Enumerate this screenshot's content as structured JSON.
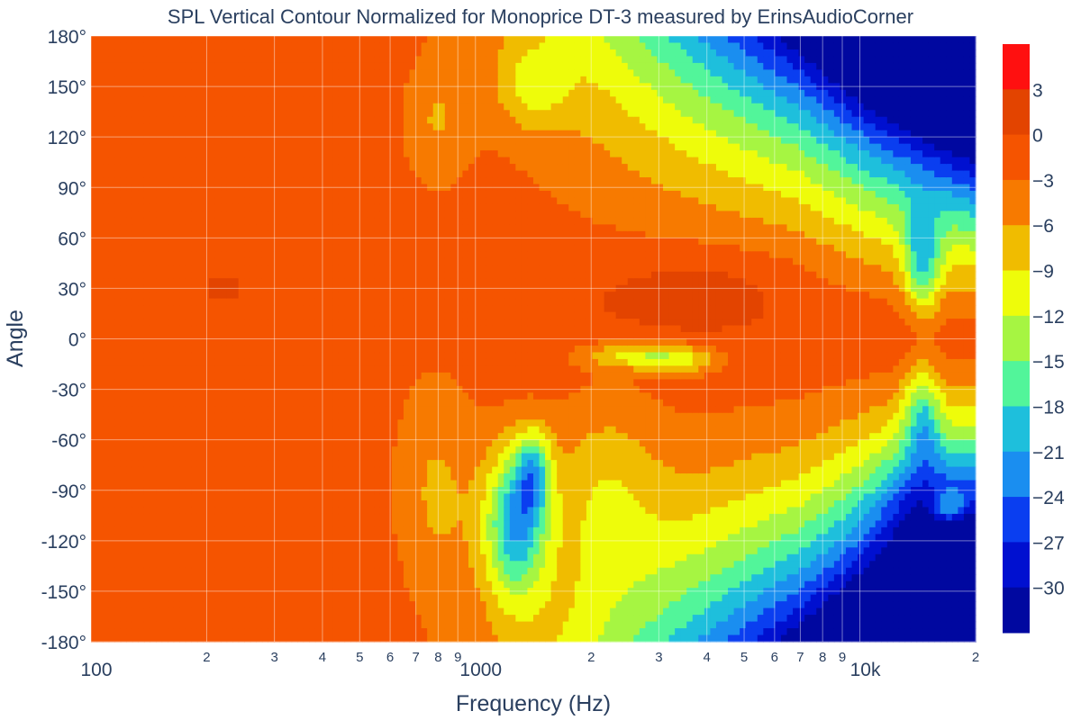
{
  "chart_data": {
    "type": "heatmap",
    "title": "SPL Vertical Contour Normalized for Monoprice DT-3 measured by ErinsAudioCorner",
    "xlabel": "Frequency (Hz)",
    "ylabel": "Angle",
    "x_scale": "log",
    "xlim": [
      100,
      20000
    ],
    "ylim": [
      -180,
      180
    ],
    "x_ticks_major": [
      {
        "value": 100,
        "label": "100"
      },
      {
        "value": 1000,
        "label": "1000"
      },
      {
        "value": 10000,
        "label": "10k"
      }
    ],
    "x_ticks_minor": [
      {
        "value": 200,
        "label": "2"
      },
      {
        "value": 300,
        "label": "3"
      },
      {
        "value": 400,
        "label": "4"
      },
      {
        "value": 500,
        "label": "5"
      },
      {
        "value": 600,
        "label": "6"
      },
      {
        "value": 700,
        "label": "7"
      },
      {
        "value": 800,
        "label": "8"
      },
      {
        "value": 900,
        "label": "9"
      },
      {
        "value": 2000,
        "label": "2"
      },
      {
        "value": 3000,
        "label": "3"
      },
      {
        "value": 4000,
        "label": "4"
      },
      {
        "value": 5000,
        "label": "5"
      },
      {
        "value": 6000,
        "label": "6"
      },
      {
        "value": 7000,
        "label": "7"
      },
      {
        "value": 8000,
        "label": "8"
      },
      {
        "value": 9000,
        "label": "9"
      },
      {
        "value": 20000,
        "label": "2"
      }
    ],
    "y_ticks": [
      {
        "value": 180,
        "label": "180°"
      },
      {
        "value": 150,
        "label": "150°"
      },
      {
        "value": 120,
        "label": "120°"
      },
      {
        "value": 90,
        "label": "90°"
      },
      {
        "value": 60,
        "label": "60°"
      },
      {
        "value": 30,
        "label": "30°"
      },
      {
        "value": 0,
        "label": "0°"
      },
      {
        "value": -30,
        "label": "-30°"
      },
      {
        "value": -60,
        "label": "-60°"
      },
      {
        "value": -90,
        "label": "-90°"
      },
      {
        "value": -120,
        "label": "-120°"
      },
      {
        "value": -150,
        "label": "-150°"
      },
      {
        "value": -180,
        "label": "-180°"
      }
    ],
    "colorbar": {
      "range": [
        -33,
        6
      ],
      "ticks": [
        {
          "value": 3,
          "label": "3"
        },
        {
          "value": 0,
          "label": "0"
        },
        {
          "value": -3,
          "label": "−3"
        },
        {
          "value": -6,
          "label": "−6"
        },
        {
          "value": -9,
          "label": "−9"
        },
        {
          "value": -12,
          "label": "−12"
        },
        {
          "value": -15,
          "label": "−15"
        },
        {
          "value": -18,
          "label": "−18"
        },
        {
          "value": -21,
          "label": "−21"
        },
        {
          "value": -24,
          "label": "−24"
        },
        {
          "value": -27,
          "label": "−27"
        },
        {
          "value": -30,
          "label": "−30"
        }
      ],
      "bands": [
        {
          "min": 3,
          "max": 6,
          "color": "#ff1010"
        },
        {
          "min": 0,
          "max": 3,
          "color": "#e34400"
        },
        {
          "min": -3,
          "max": 0,
          "color": "#f55400"
        },
        {
          "min": -6,
          "max": -3,
          "color": "#f77a00"
        },
        {
          "min": -9,
          "max": -6,
          "color": "#f0bc00"
        },
        {
          "min": -12,
          "max": -9,
          "color": "#eefc0a"
        },
        {
          "min": -15,
          "max": -12,
          "color": "#a6f542"
        },
        {
          "min": -18,
          "max": -15,
          "color": "#52f59a"
        },
        {
          "min": -21,
          "max": -18,
          "color": "#1ebfdc"
        },
        {
          "min": -24,
          "max": -21,
          "color": "#1a8ef0"
        },
        {
          "min": -27,
          "max": -24,
          "color": "#0a3ef0"
        },
        {
          "min": -30,
          "max": -27,
          "color": "#0010d0"
        },
        {
          "min": -33,
          "max": -30,
          "color": "#0008a0"
        }
      ]
    }
  }
}
